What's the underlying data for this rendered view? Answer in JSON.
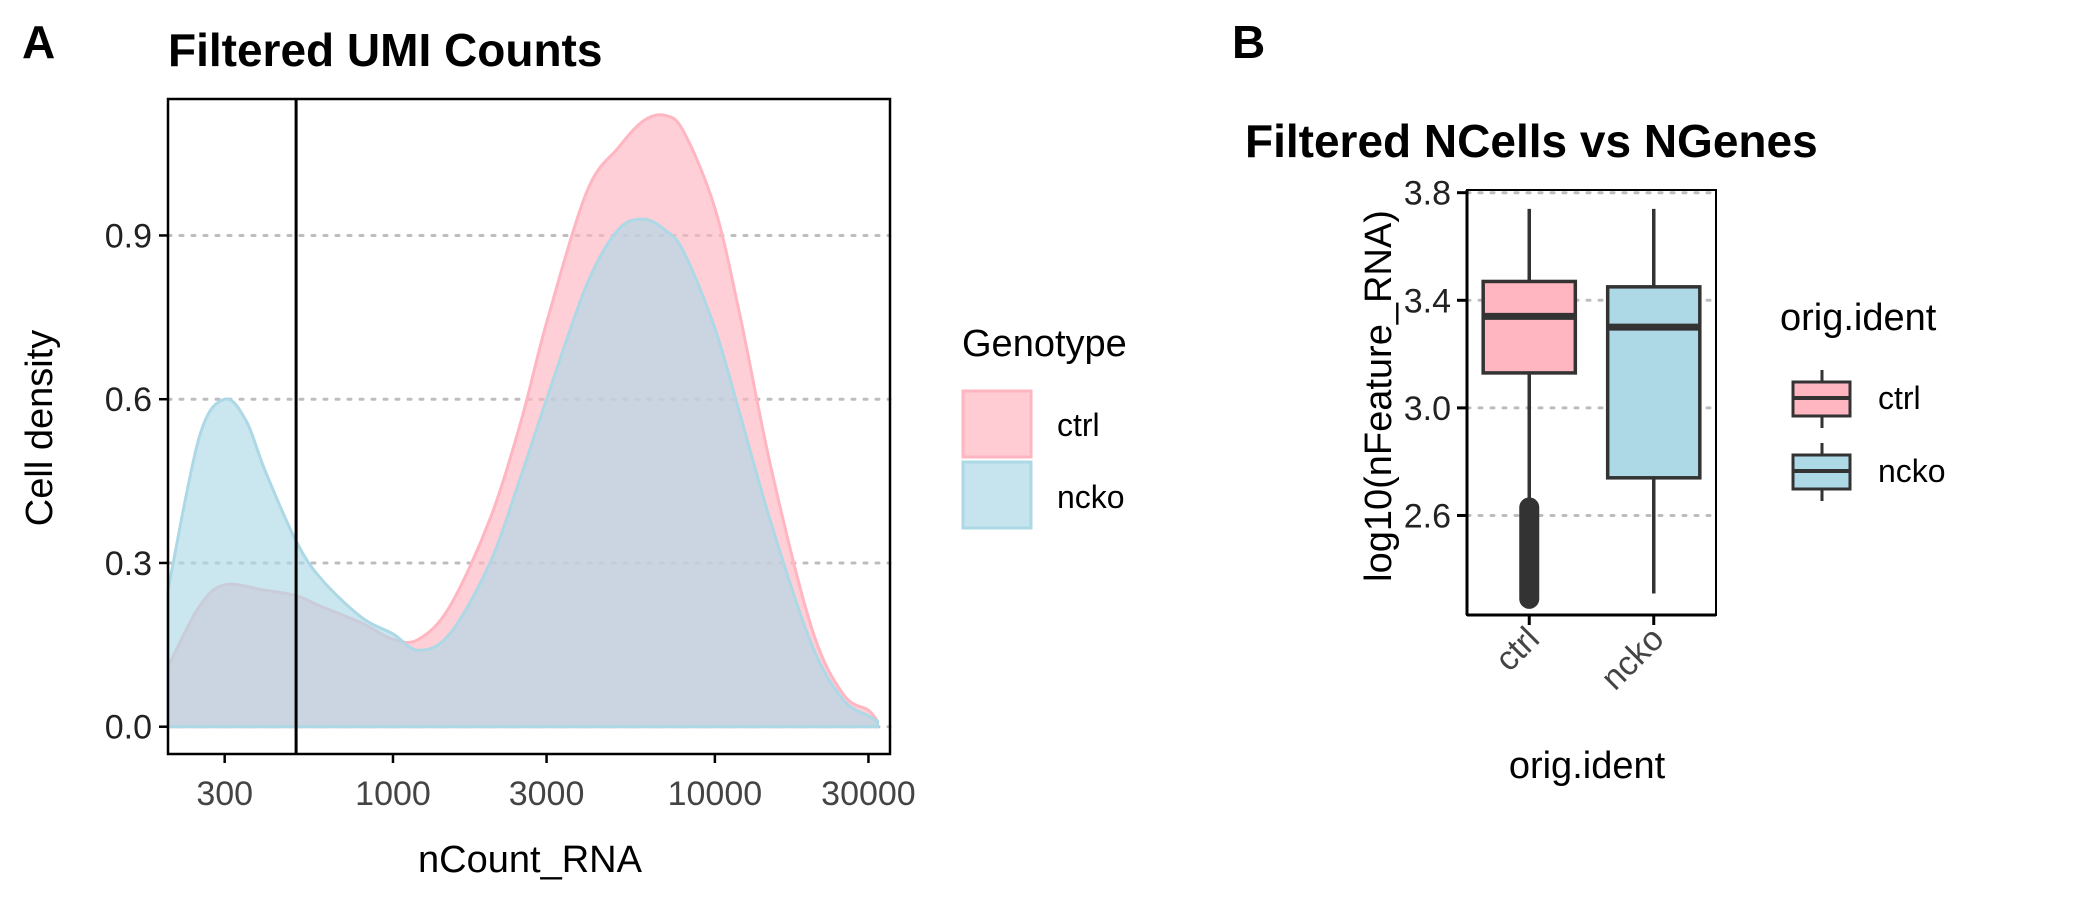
{
  "panel_labels": [
    "A",
    "B"
  ],
  "colors": {
    "ctrl": "#FFB6C1",
    "ncko": "#ADD8E6",
    "box_line": "#333333",
    "grid": "#bdbdbd"
  },
  "chart_data": [
    {
      "type": "area",
      "title": "Filtered UMI Counts",
      "xlabel": "nCount_RNA",
      "ylabel": "Cell density",
      "x_scale": "log10",
      "xlim": [
        200,
        35000
      ],
      "ylim": [
        -0.05,
        1.15
      ],
      "x_ticks": [
        300,
        1000,
        3000,
        10000,
        30000
      ],
      "x_tick_labels": [
        "300",
        "1000",
        "3000",
        "10000",
        "30000"
      ],
      "y_ticks": [
        0.0,
        0.3,
        0.6,
        0.9
      ],
      "y_tick_labels": [
        "0.0",
        "0.3",
        "0.6",
        "0.9"
      ],
      "grid": "horizontal dotted",
      "vline_x": 500,
      "legend": {
        "title": "Genotype",
        "position": "right",
        "entries": [
          "ctrl",
          "ncko"
        ]
      },
      "series": [
        {
          "name": "ctrl",
          "x": [
            200,
            250,
            300,
            400,
            500,
            600,
            800,
            1000,
            1200,
            1500,
            2000,
            2500,
            3000,
            4000,
            5000,
            6000,
            7000,
            8000,
            10000,
            12000,
            15000,
            20000,
            25000,
            30000,
            32000
          ],
          "y": [
            0.11,
            0.22,
            0.26,
            0.25,
            0.24,
            0.22,
            0.19,
            0.16,
            0.16,
            0.22,
            0.38,
            0.56,
            0.74,
            0.98,
            1.06,
            1.11,
            1.12,
            1.09,
            0.95,
            0.75,
            0.47,
            0.18,
            0.06,
            0.03,
            0.01
          ]
        },
        {
          "name": "ncko",
          "x": [
            200,
            250,
            300,
            350,
            400,
            500,
            600,
            800,
            1000,
            1200,
            1500,
            2000,
            2500,
            3000,
            4000,
            5000,
            6000,
            7000,
            8000,
            10000,
            12000,
            15000,
            20000,
            25000,
            30000,
            32000
          ],
          "y": [
            0.25,
            0.53,
            0.6,
            0.56,
            0.47,
            0.34,
            0.27,
            0.2,
            0.17,
            0.14,
            0.17,
            0.3,
            0.46,
            0.6,
            0.81,
            0.91,
            0.93,
            0.91,
            0.87,
            0.73,
            0.57,
            0.37,
            0.15,
            0.05,
            0.02,
            0.01
          ]
        }
      ]
    },
    {
      "type": "box",
      "title": "Filtered NCells vs NGenes",
      "xlabel": "orig.ident",
      "ylabel": "log10(nFeature_RNA)",
      "categories": [
        "ctrl",
        "ncko"
      ],
      "ylim": [
        2.23,
        3.81
      ],
      "y_ticks": [
        2.6,
        3.0,
        3.4,
        3.8
      ],
      "y_tick_labels": [
        "2.6",
        "3.0",
        "3.4",
        "3.8"
      ],
      "grid": "horizontal dotted",
      "legend": {
        "title": "orig.ident",
        "position": "right",
        "entries": [
          "ctrl",
          "ncko"
        ]
      },
      "boxes": [
        {
          "name": "ctrl",
          "whisker_low": 2.63,
          "q1": 3.13,
          "median": 3.34,
          "q3": 3.47,
          "whisker_high": 3.74,
          "outlier_low": 2.29,
          "outlier_high": 2.63
        },
        {
          "name": "ncko",
          "whisker_low": 2.31,
          "q1": 2.74,
          "median": 3.3,
          "q3": 3.45,
          "whisker_high": 3.74
        }
      ]
    }
  ]
}
